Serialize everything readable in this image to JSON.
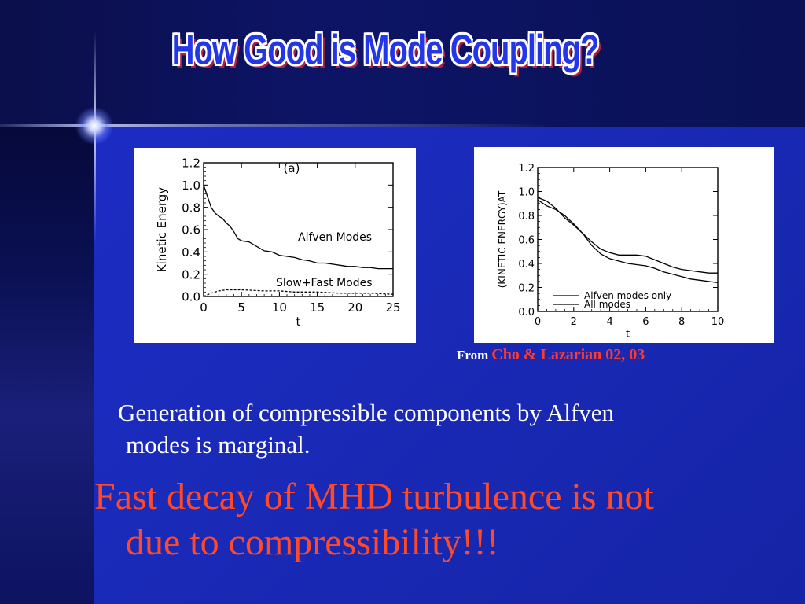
{
  "slide": {
    "title": "How Good is Mode Coupling?",
    "credit_prefix": "From",
    "credit_text": "Cho & Lazarian 02, 03",
    "paragraph_line1": "Generation of compressible components by Alfven",
    "paragraph_line2": "modes is marginal.",
    "emphasis_line1": "Fast decay of MHD turbulence is not",
    "emphasis_line2": "due to compressibility!!!"
  },
  "colors": {
    "background": "#1c2cc4",
    "title": "#2437e6",
    "emphasis": "#ff4a2a",
    "credit": "#ff3a2e"
  },
  "chart_data": [
    {
      "type": "line",
      "panel_label": "(a)",
      "xlabel": "t",
      "ylabel": "Kinetic Energy",
      "xlim": [
        0,
        25
      ],
      "ylim": [
        0,
        1.2
      ],
      "x_ticks": [
        "0",
        "5",
        "10",
        "15",
        "20",
        "25"
      ],
      "y_ticks": [
        "0.0",
        "0.2",
        "0.4",
        "0.6",
        "0.8",
        "1.0",
        "1.2"
      ],
      "annotations": [
        "Alfven Modes",
        "Slow+Fast Modes"
      ],
      "series": [
        {
          "x": [
            0,
            0.5,
            1,
            1.5,
            2,
            2.5,
            3,
            3.5,
            4,
            4.5,
            5,
            6,
            7,
            8,
            9,
            10,
            11,
            12,
            13,
            14,
            15,
            16,
            17,
            18,
            19,
            20,
            21,
            22,
            23,
            24,
            25
          ],
          "y": [
            1.0,
            0.9,
            0.8,
            0.75,
            0.72,
            0.7,
            0.66,
            0.63,
            0.58,
            0.52,
            0.5,
            0.49,
            0.45,
            0.41,
            0.4,
            0.37,
            0.36,
            0.35,
            0.33,
            0.32,
            0.3,
            0.3,
            0.29,
            0.28,
            0.27,
            0.27,
            0.26,
            0.26,
            0.25,
            0.25,
            0.25
          ]
        },
        {
          "x": [
            0,
            1,
            2,
            3,
            5,
            8,
            10,
            12,
            15,
            18,
            20,
            22,
            25
          ],
          "y": [
            0.0,
            0.03,
            0.05,
            0.06,
            0.06,
            0.05,
            0.05,
            0.04,
            0.04,
            0.03,
            0.03,
            0.03,
            0.02
          ]
        }
      ]
    },
    {
      "type": "line",
      "xlabel": "t",
      "ylabel": "(KINETIC ENERGY)AT",
      "xlim": [
        0,
        10
      ],
      "ylim": [
        0,
        1.2
      ],
      "x_ticks": [
        "0",
        "2",
        "4",
        "6",
        "8",
        "10"
      ],
      "y_ticks": [
        "0.0",
        "0.2",
        "0.4",
        "0.6",
        "0.8",
        "1.0",
        "1.2"
      ],
      "legend": [
        "Alfven modes only",
        "All modes"
      ],
      "series": [
        {
          "name": "Alfven modes only",
          "x": [
            0,
            0.5,
            1,
            1.5,
            2,
            2.5,
            3,
            3.5,
            4,
            4.5,
            5,
            5.5,
            6,
            6.5,
            7,
            7.5,
            8,
            8.5,
            9,
            9.5,
            10
          ],
          "y": [
            0.95,
            0.92,
            0.86,
            0.78,
            0.72,
            0.65,
            0.58,
            0.52,
            0.49,
            0.47,
            0.47,
            0.47,
            0.46,
            0.43,
            0.4,
            0.37,
            0.35,
            0.34,
            0.33,
            0.32,
            0.32
          ]
        },
        {
          "name": "All modes",
          "x": [
            0,
            0.5,
            1,
            1.5,
            2,
            2.5,
            3,
            3.5,
            4,
            4.5,
            5,
            5.5,
            6,
            6.5,
            7,
            7.5,
            8,
            8.5,
            9,
            9.5,
            10
          ],
          "y": [
            0.93,
            0.88,
            0.85,
            0.8,
            0.73,
            0.65,
            0.55,
            0.48,
            0.44,
            0.42,
            0.4,
            0.39,
            0.38,
            0.36,
            0.33,
            0.31,
            0.29,
            0.27,
            0.26,
            0.25,
            0.24
          ]
        }
      ]
    }
  ]
}
